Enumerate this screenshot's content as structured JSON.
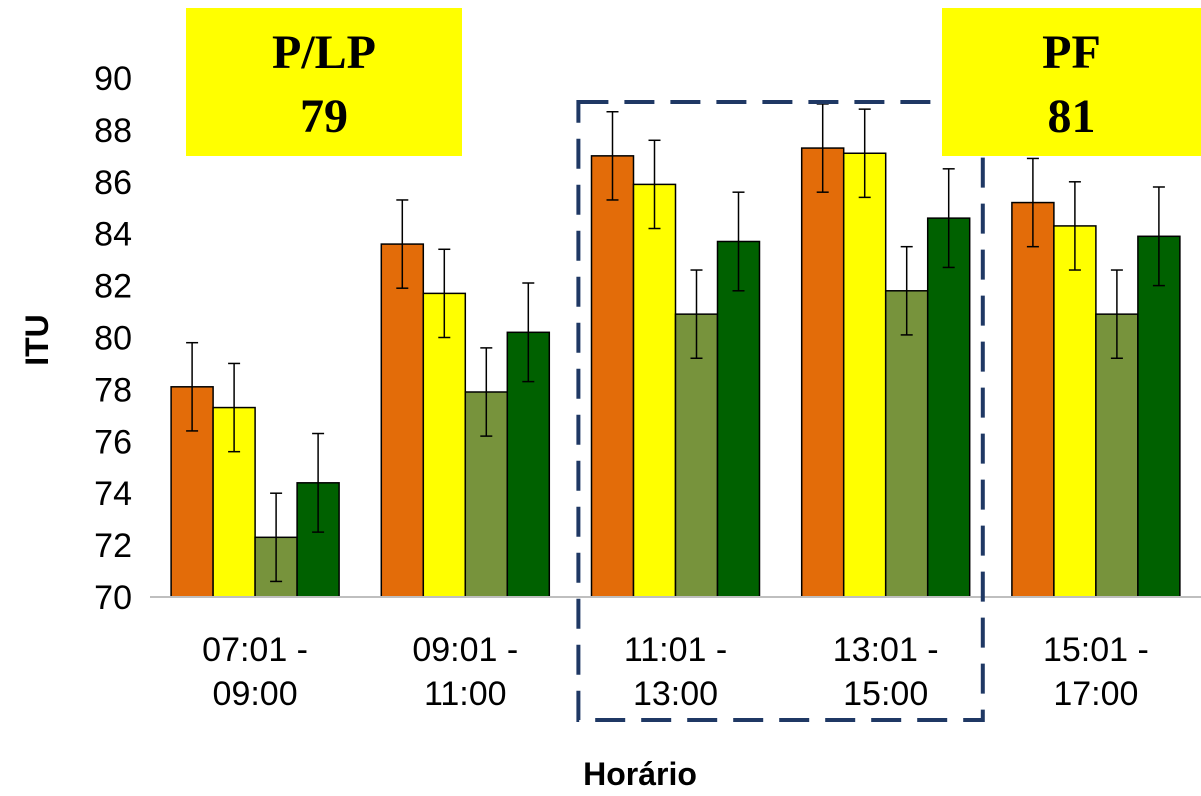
{
  "chart_data": {
    "type": "bar",
    "title": "",
    "xlabel": "Horário",
    "ylabel": "ITU",
    "ylim": [
      70,
      90
    ],
    "yticks": [
      70,
      72,
      74,
      76,
      78,
      80,
      82,
      84,
      86,
      88,
      90
    ],
    "categories": [
      [
        "07:01 -",
        "09:00"
      ],
      [
        "09:01 -",
        "11:00"
      ],
      [
        "11:01 -",
        "13:00"
      ],
      [
        "13:01 -",
        "15:00"
      ],
      [
        "15:01 -",
        "17:00"
      ]
    ],
    "series": [
      {
        "color": "#E36C09",
        "values": [
          78.1,
          83.6,
          87.0,
          87.3,
          85.2
        ],
        "error": [
          1.7,
          1.7,
          1.7,
          1.7,
          1.7
        ]
      },
      {
        "color": "#FFFF00",
        "values": [
          77.3,
          81.7,
          85.9,
          87.1,
          84.3
        ],
        "error": [
          1.7,
          1.7,
          1.7,
          1.7,
          1.7
        ]
      },
      {
        "color": "#77933C",
        "values": [
          72.3,
          77.9,
          80.9,
          81.8,
          80.9
        ],
        "error": [
          1.7,
          1.7,
          1.7,
          1.7,
          1.7
        ]
      },
      {
        "color": "#006100",
        "values": [
          74.4,
          80.2,
          83.7,
          84.6,
          83.9
        ],
        "error": [
          1.9,
          1.9,
          1.9,
          1.9,
          1.9
        ]
      }
    ],
    "grid": false,
    "legend": "none",
    "annotations": [
      {
        "lines": [
          "P/LP",
          "79"
        ],
        "background": "#FFFF00"
      },
      {
        "lines": [
          "PF",
          "81"
        ],
        "background": "#FFFF00"
      }
    ],
    "highlight": {
      "style": "dashed",
      "color": "#1F3864",
      "categories": [
        2,
        3
      ]
    }
  }
}
